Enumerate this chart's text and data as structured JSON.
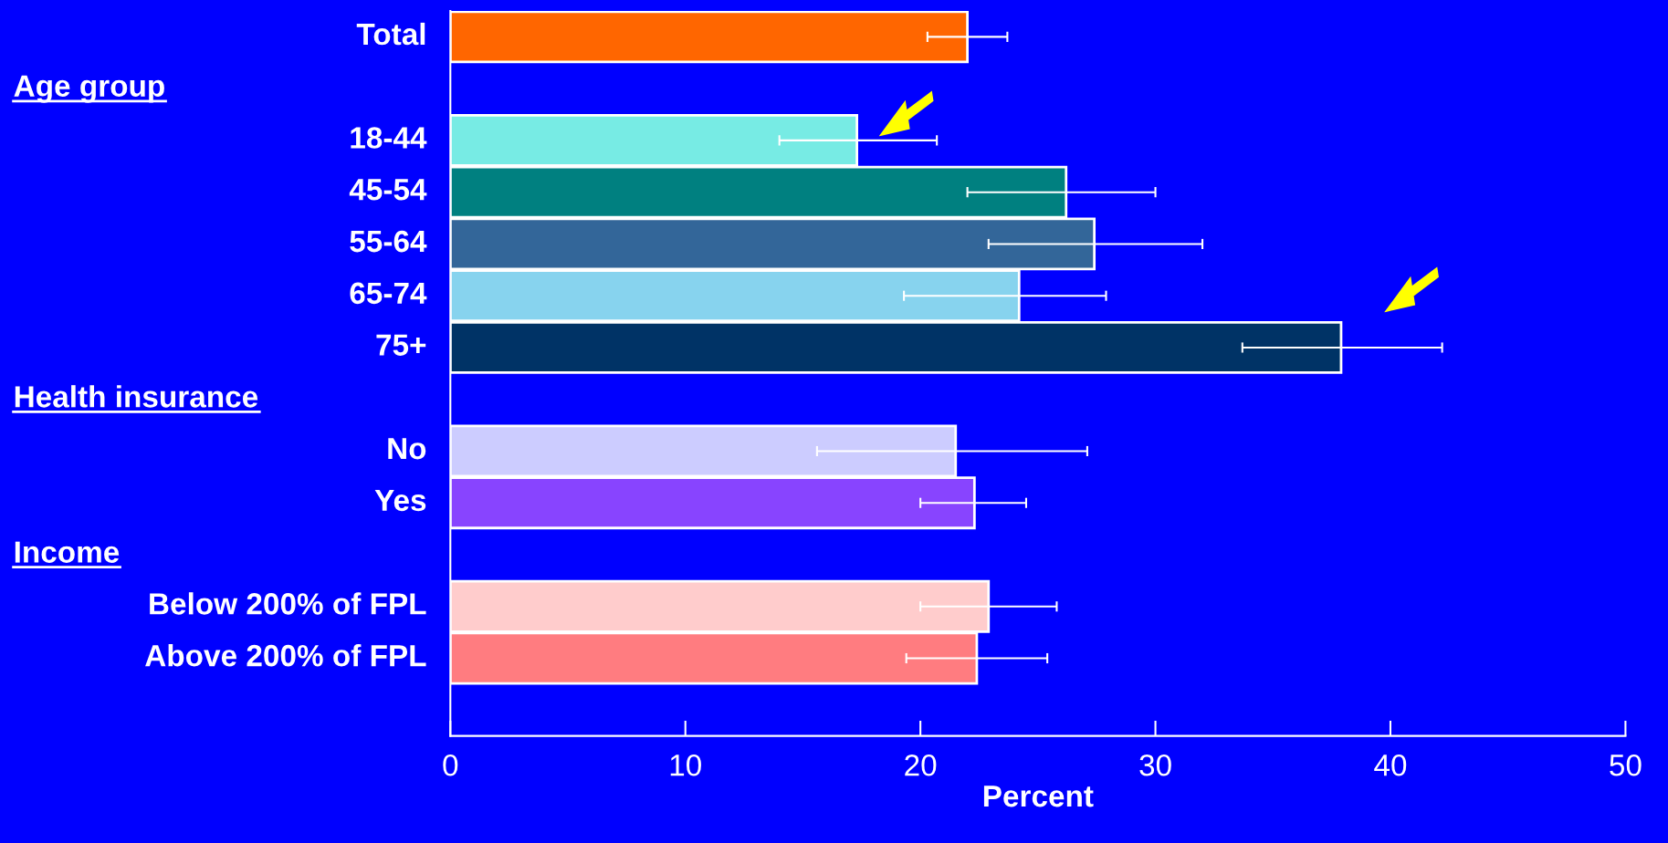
{
  "chart_data": {
    "type": "bar",
    "orientation": "horizontal",
    "categories": [
      "Total",
      null,
      "18-44",
      "45-54",
      "55-64",
      "65-74",
      "75+",
      null,
      "No",
      "Yes",
      null,
      "Below 200% of FPL",
      "Above 200% of FPL",
      null
    ],
    "annotations": [
      "Age group",
      "Health insurance",
      "Income"
    ],
    "values": [
      22.0,
      null,
      17.3,
      26.2,
      27.4,
      24.2,
      37.9,
      null,
      21.5,
      22.3,
      null,
      22.9,
      22.4,
      null
    ],
    "colors": [
      "#ff6600",
      null,
      "#77ebe4",
      "#008080",
      "#336699",
      "#87d3ee",
      "#003366",
      null,
      "#ccccff",
      "#8844ff",
      null,
      "#ffcccc",
      "#ff7c80",
      null
    ],
    "errors": [
      [
        20.3,
        23.7
      ],
      null,
      [
        14.0,
        20.7
      ],
      [
        22.0,
        30.0
      ],
      [
        22.9,
        32.0
      ],
      [
        19.3,
        27.9
      ],
      [
        33.7,
        42.2
      ],
      null,
      [
        15.6,
        27.1
      ],
      [
        20.0,
        24.5
      ],
      null,
      [
        20.0,
        25.8
      ],
      [
        19.4,
        25.4
      ],
      null
    ],
    "xlabel": "Percent",
    "xlim": [
      0,
      50
    ],
    "xticks": [
      0,
      10,
      20,
      30,
      40,
      50
    ],
    "grid": false
  }
}
